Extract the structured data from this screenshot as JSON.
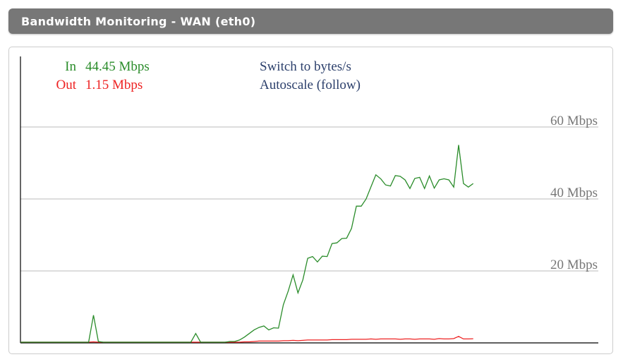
{
  "header": {
    "title": "Bandwidth Monitoring - WAN (eth0)"
  },
  "stats": {
    "in_label": "In",
    "in_value": "44.45 Mbps",
    "out_label": "Out",
    "out_value": "1.15 Mbps"
  },
  "controls": {
    "switch_units": "Switch to bytes/s",
    "autoscale": "Autoscale (follow)"
  },
  "colors": {
    "in": "#2a8c2a",
    "out": "#ee2222",
    "link": "#2b3f6b",
    "grid": "#bbbbbb",
    "label": "#777777",
    "header_bg": "#777777"
  },
  "chart_data": {
    "type": "line",
    "title": "",
    "xlabel": "",
    "ylabel": "",
    "y_unit": "Mbps",
    "ylim": [
      0,
      60
    ],
    "y_ticks": [
      20,
      40,
      60
    ],
    "y_tick_labels": [
      "20 Mbps",
      "40 Mbps",
      "60 Mbps"
    ],
    "grid": true,
    "series": [
      {
        "name": "In",
        "color": "#2a8c2a",
        "values": [
          0.2,
          0.2,
          0.2,
          0.2,
          0.2,
          0.2,
          0.2,
          0.2,
          0.2,
          0.2,
          0.2,
          0.2,
          0.2,
          0.2,
          0.2,
          7.7,
          0.4,
          0.2,
          0.2,
          0.2,
          0.2,
          0.2,
          0.2,
          0.2,
          0.2,
          0.2,
          0.2,
          0.2,
          0.2,
          0.2,
          0.2,
          0.2,
          0.2,
          0.2,
          0.2,
          0.2,
          2.6,
          0.2,
          0.2,
          0.2,
          0.2,
          0.2,
          0.2,
          0.4,
          0.4,
          0.8,
          1.6,
          2.6,
          3.6,
          4.3,
          4.7,
          3.6,
          4.2,
          4.1,
          10.6,
          14.4,
          18.9,
          13.9,
          17.5,
          23.5,
          24.0,
          22.5,
          24.1,
          24.0,
          27.6,
          27.8,
          29.0,
          29.1,
          31.8,
          38.0,
          38.0,
          40.0,
          43.4,
          46.7,
          45.6,
          43.9,
          43.6,
          46.5,
          46.3,
          45.3,
          42.9,
          45.7,
          46.0,
          42.9,
          46.4,
          43.0,
          45.3,
          45.6,
          45.3,
          43.3,
          55.0,
          44.3,
          43.3,
          44.3
        ],
        "current": 44.45
      },
      {
        "name": "Out",
        "color": "#ee2222",
        "values": [
          0.2,
          0.2,
          0.2,
          0.2,
          0.2,
          0.2,
          0.2,
          0.2,
          0.2,
          0.2,
          0.2,
          0.2,
          0.2,
          0.2,
          0.2,
          0.3,
          0.2,
          0.2,
          0.2,
          0.2,
          0.2,
          0.2,
          0.2,
          0.2,
          0.2,
          0.2,
          0.2,
          0.2,
          0.2,
          0.2,
          0.2,
          0.2,
          0.2,
          0.2,
          0.2,
          0.2,
          0.2,
          0.2,
          0.2,
          0.2,
          0.2,
          0.2,
          0.2,
          0.2,
          0.2,
          0.2,
          0.3,
          0.3,
          0.4,
          0.5,
          0.5,
          0.5,
          0.5,
          0.5,
          0.6,
          0.6,
          0.7,
          0.6,
          0.7,
          0.8,
          0.8,
          0.8,
          0.8,
          0.8,
          0.9,
          0.9,
          0.9,
          0.9,
          1.0,
          1.0,
          1.0,
          1.0,
          1.1,
          1.0,
          1.1,
          1.1,
          1.1,
          1.1,
          1.0,
          1.1,
          1.1,
          1.0,
          1.1,
          1.1,
          1.1,
          1.0,
          1.2,
          1.1,
          1.1,
          1.2,
          1.8,
          1.1,
          1.1,
          1.15
        ],
        "current": 1.15
      }
    ]
  }
}
